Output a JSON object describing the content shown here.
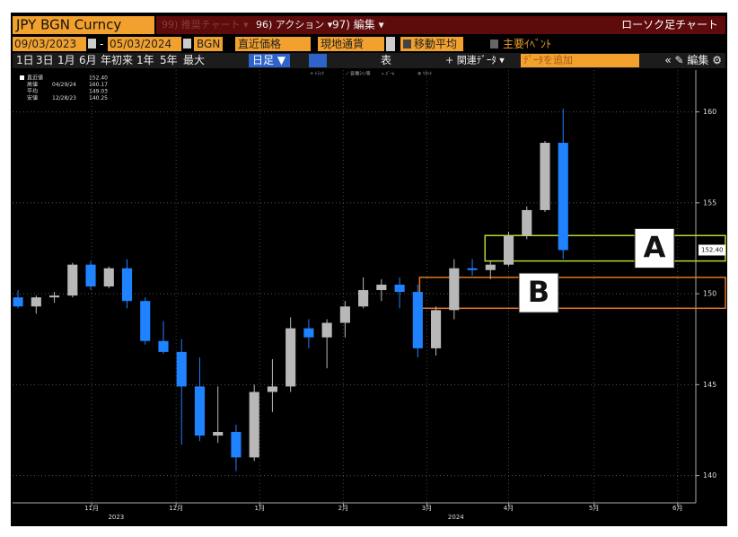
{
  "toolbar": {
    "security": "JPY BGN Curncy",
    "menu": [
      "99) 推奨チャート ▾",
      "96) アクション ▾",
      "97) 編集 ▾"
    ],
    "chart_kind": "ローソク足チャート",
    "start_date": "09/03/2023",
    "end_date": "05/03/2024",
    "source": "BGN",
    "field": "直近価格",
    "currency": "現地通貨",
    "moving_average": "移動平均",
    "events": "主要ｲﾍﾞﾝﾄ",
    "periods": [
      "1日",
      "3日",
      "1月",
      "6月",
      "年初来",
      "1年",
      "5年",
      "最大"
    ],
    "frequency": "日足 ▼",
    "table": "表",
    "related": "+ 関連ﾃﾞｰﾀ ▾",
    "add_data": "ﾃﾞｰﾀを追加",
    "edit": "« ✎ 編集 ⚙",
    "tools": [
      "+ ﾄﾗｯｸ",
      "⟋ 各種ﾗｲﾝ等",
      "⌕ ｽﾞｰﾑ",
      "⚙ ﾘｾｯﾄ"
    ]
  },
  "chart_data": {
    "type": "candlestick",
    "legend": [
      {
        "label": "直近値",
        "date": "",
        "value": "152.40"
      },
      {
        "label": "高値",
        "date": "04/29/24",
        "value": "160.17"
      },
      {
        "label": "平均",
        "date": "",
        "value": "149.03"
      },
      {
        "label": "安値",
        "date": "12/28/23",
        "value": "140.25"
      }
    ],
    "up_color": "#b8b8b8",
    "down_color": "#1f82ff",
    "candles": [
      {
        "open": 149.8,
        "high": 150.2,
        "low": 149.2,
        "close": 149.3
      },
      {
        "open": 149.3,
        "high": 149.9,
        "low": 148.9,
        "close": 149.8
      },
      {
        "open": 149.8,
        "high": 150.1,
        "low": 149.5,
        "close": 149.9
      },
      {
        "open": 149.9,
        "high": 151.7,
        "low": 149.8,
        "close": 151.6
      },
      {
        "open": 151.6,
        "high": 151.8,
        "low": 150.2,
        "close": 150.4
      },
      {
        "open": 150.4,
        "high": 151.5,
        "low": 150.3,
        "close": 151.4
      },
      {
        "open": 151.4,
        "high": 151.9,
        "low": 149.2,
        "close": 149.6
      },
      {
        "open": 149.6,
        "high": 149.8,
        "low": 147.2,
        "close": 147.4
      },
      {
        "open": 147.4,
        "high": 148.5,
        "low": 146.7,
        "close": 146.8
      },
      {
        "open": 146.8,
        "high": 147.5,
        "low": 141.7,
        "close": 144.9
      },
      {
        "open": 144.9,
        "high": 146.5,
        "low": 141.9,
        "close": 142.2
      },
      {
        "open": 142.2,
        "high": 144.9,
        "low": 141.8,
        "close": 142.4
      },
      {
        "open": 142.4,
        "high": 142.8,
        "low": 140.25,
        "close": 141.0
      },
      {
        "open": 141.0,
        "high": 145.0,
        "low": 140.8,
        "close": 144.6
      },
      {
        "open": 144.6,
        "high": 146.4,
        "low": 143.5,
        "close": 144.9
      },
      {
        "open": 144.9,
        "high": 148.7,
        "low": 144.6,
        "close": 148.1
      },
      {
        "open": 148.1,
        "high": 148.6,
        "low": 147.0,
        "close": 147.6
      },
      {
        "open": 147.6,
        "high": 148.6,
        "low": 145.9,
        "close": 148.4
      },
      {
        "open": 148.4,
        "high": 149.6,
        "low": 147.6,
        "close": 149.3
      },
      {
        "open": 149.3,
        "high": 150.9,
        "low": 149.2,
        "close": 150.2
      },
      {
        "open": 150.2,
        "high": 150.8,
        "low": 149.6,
        "close": 150.5
      },
      {
        "open": 150.5,
        "high": 150.9,
        "low": 149.2,
        "close": 150.1
      },
      {
        "open": 150.1,
        "high": 150.5,
        "low": 146.5,
        "close": 147.0
      },
      {
        "open": 147.0,
        "high": 149.3,
        "low": 146.6,
        "close": 149.1
      },
      {
        "open": 149.1,
        "high": 151.9,
        "low": 148.6,
        "close": 151.4
      },
      {
        "open": 151.4,
        "high": 151.9,
        "low": 151.0,
        "close": 151.3
      },
      {
        "open": 151.3,
        "high": 151.8,
        "low": 150.8,
        "close": 151.6
      },
      {
        "open": 151.6,
        "high": 153.4,
        "low": 151.5,
        "close": 153.2
      },
      {
        "open": 153.2,
        "high": 154.8,
        "low": 153.0,
        "close": 154.6
      },
      {
        "open": 154.6,
        "high": 158.4,
        "low": 154.5,
        "close": 158.3
      },
      {
        "open": 158.3,
        "high": 160.17,
        "low": 151.9,
        "close": 152.4
      }
    ],
    "xlim": [
      -0.3,
      37.3
    ],
    "xticks": [
      {
        "value": 4.05,
        "label": "11月"
      },
      {
        "value": 8.7,
        "label": "12月"
      },
      {
        "value": 13.3,
        "label": "1月"
      },
      {
        "value": 17.9,
        "label": "2月"
      },
      {
        "value": 22.5,
        "label": "3月"
      },
      {
        "value": 27.0,
        "label": "4月"
      },
      {
        "value": 31.7,
        "label": "5月"
      },
      {
        "value": 36.3,
        "label": "6月"
      }
    ],
    "year_ticks": [
      {
        "value": 5.4,
        "label": "2023"
      },
      {
        "value": 24.1,
        "label": "2024"
      }
    ],
    "ylim": [
      138.5,
      162.3
    ],
    "yticks": [
      140,
      145,
      150,
      155,
      160
    ],
    "grid": true,
    "last_price": {
      "value": 152.4,
      "label": "152.40"
    },
    "annotations": [
      {
        "label": "A",
        "color": "#b7d433",
        "range": [
          151.8,
          153.2
        ],
        "x_start": 25.7
      },
      {
        "label": "B",
        "color": "#e0782a",
        "range": [
          149.2,
          150.9
        ],
        "x_start": 22.1
      }
    ]
  }
}
